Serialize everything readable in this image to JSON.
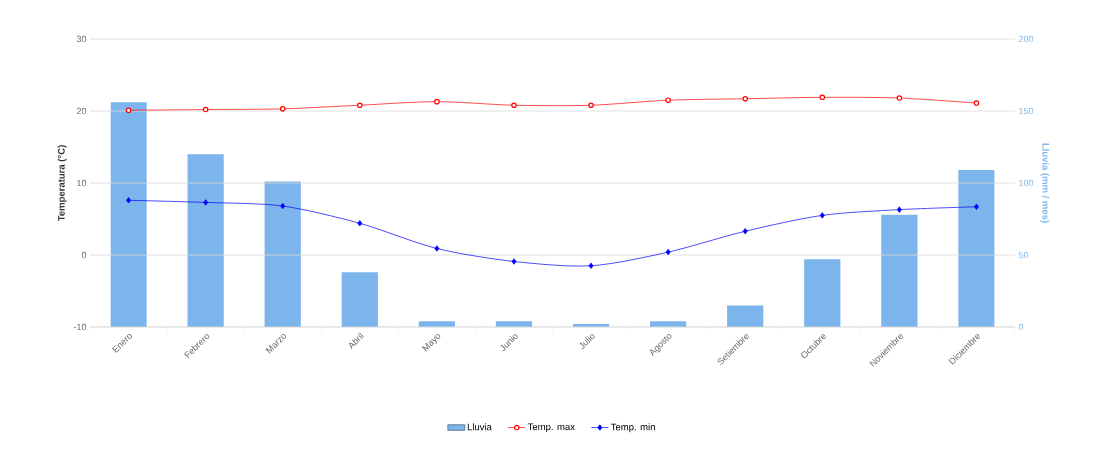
{
  "chart_data": {
    "type": "bar",
    "categories": [
      "Enero",
      "Febrero",
      "Marzo",
      "Abril",
      "Mayo",
      "Junio",
      "Julio",
      "Agosto",
      "Setiembre",
      "Octubre",
      "Noviembre",
      "Diciembre"
    ],
    "series": [
      {
        "name": "Lluvia",
        "axis": "y2",
        "color": "#7cb5ec",
        "values": [
          156,
          120,
          101,
          38,
          4,
          4,
          2,
          4,
          15,
          47,
          78,
          109
        ]
      },
      {
        "name": "Temp. max",
        "type": "line",
        "color": "#ff0000",
        "marker": "circle",
        "values": [
          20.1,
          20.2,
          20.3,
          20.8,
          21.3,
          20.8,
          20.8,
          21.5,
          21.7,
          21.9,
          21.8,
          21.1
        ]
      },
      {
        "name": "Temp. min",
        "type": "line",
        "color": "#0000ff",
        "marker": "diamond",
        "values": [
          7.6,
          7.3,
          6.8,
          4.4,
          0.9,
          -0.9,
          -1.5,
          0.4,
          3.3,
          5.5,
          6.3,
          6.7
        ]
      }
    ],
    "ylabel": "Temperatura (°C)",
    "y2label": "Lluvia (mm / mes)",
    "ylim": [
      -10,
      30
    ],
    "yticks": [
      -10,
      0,
      10,
      20,
      30
    ],
    "y2lim": [
      0,
      200
    ],
    "y2ticks": [
      0,
      50,
      100,
      150,
      200
    ],
    "grid": "y",
    "legend": "bottom"
  }
}
